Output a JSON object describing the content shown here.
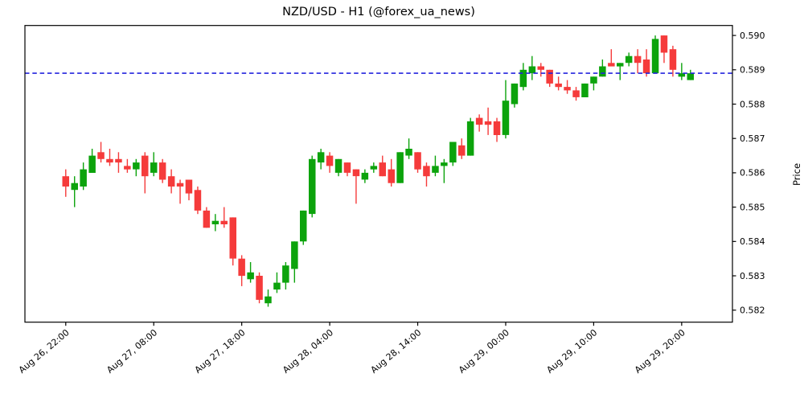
{
  "chart_data": {
    "type": "candlestick",
    "title": "NZD/USD - H1 (@forex_ua_news)",
    "pair": "NZD/USD",
    "timeframe": "H1",
    "source_handle": "@forex_ua_news",
    "right_axis_label": "Price",
    "grid": false,
    "ylim": [
      0.58165,
      0.59029
    ],
    "y_ticks": [
      0.582,
      0.583,
      0.584,
      0.585,
      0.586,
      0.587,
      0.588,
      0.589,
      0.59
    ],
    "xlim_index": [
      -4.64,
      75.77
    ],
    "x_ticks": [
      {
        "index": 0,
        "label": "Aug 26, 22:00"
      },
      {
        "index": 10,
        "label": "Aug 27, 08:00"
      },
      {
        "index": 20,
        "label": "Aug 27, 18:00"
      },
      {
        "index": 30,
        "label": "Aug 28, 04:00"
      },
      {
        "index": 40,
        "label": "Aug 28, 14:00"
      },
      {
        "index": 50,
        "label": "Aug 29, 00:00"
      },
      {
        "index": 60,
        "label": "Aug 29, 10:00"
      },
      {
        "index": 70,
        "label": "Aug 29, 20:00"
      }
    ],
    "current_price_line": {
      "value": 0.5889,
      "color": "#2323dd",
      "style": "dashed"
    },
    "colors": {
      "up": "#0ca30c",
      "down": "#f53b3b",
      "axis": "#000000",
      "background": "#ffffff"
    },
    "candles": [
      {
        "t": "Aug 26 22:00",
        "ohlc": [
          0.5859,
          0.5861,
          0.5853,
          0.5856
        ]
      },
      {
        "t": "Aug 26 23:00",
        "ohlc": [
          0.5855,
          0.5859,
          0.585,
          0.5857
        ]
      },
      {
        "t": "Aug 27 00:00",
        "ohlc": [
          0.5856,
          0.5863,
          0.5855,
          0.5861
        ]
      },
      {
        "t": "Aug 27 01:00",
        "ohlc": [
          0.586,
          0.5867,
          0.586,
          0.5865
        ]
      },
      {
        "t": "Aug 27 02:00",
        "ohlc": [
          0.5866,
          0.5869,
          0.5863,
          0.5864
        ]
      },
      {
        "t": "Aug 27 03:00",
        "ohlc": [
          0.5864,
          0.5867,
          0.5862,
          0.5863
        ]
      },
      {
        "t": "Aug 27 04:00",
        "ohlc": [
          0.5864,
          0.5866,
          0.586,
          0.5863
        ]
      },
      {
        "t": "Aug 27 05:00",
        "ohlc": [
          0.5862,
          0.5864,
          0.586,
          0.5861
        ]
      },
      {
        "t": "Aug 27 06:00",
        "ohlc": [
          0.5861,
          0.5864,
          0.5859,
          0.5863
        ]
      },
      {
        "t": "Aug 27 07:00",
        "ohlc": [
          0.5865,
          0.5866,
          0.5854,
          0.5859
        ]
      },
      {
        "t": "Aug 27 08:00",
        "ohlc": [
          0.586,
          0.5866,
          0.5859,
          0.5863
        ]
      },
      {
        "t": "Aug 27 09:00",
        "ohlc": [
          0.5863,
          0.5864,
          0.5857,
          0.5858
        ]
      },
      {
        "t": "Aug 27 10:00",
        "ohlc": [
          0.5859,
          0.5861,
          0.5854,
          0.5856
        ]
      },
      {
        "t": "Aug 27 11:00",
        "ohlc": [
          0.5857,
          0.5858,
          0.5851,
          0.5856
        ]
      },
      {
        "t": "Aug 27 12:00",
        "ohlc": [
          0.5858,
          0.5858,
          0.5852,
          0.5854
        ]
      },
      {
        "t": "Aug 27 13:00",
        "ohlc": [
          0.5855,
          0.5856,
          0.5848,
          0.5849
        ]
      },
      {
        "t": "Aug 27 14:00",
        "ohlc": [
          0.5849,
          0.585,
          0.5844,
          0.5844
        ]
      },
      {
        "t": "Aug 27 15:00",
        "ohlc": [
          0.5845,
          0.5848,
          0.5843,
          0.5846
        ]
      },
      {
        "t": "Aug 27 16:00",
        "ohlc": [
          0.5846,
          0.585,
          0.5844,
          0.5845
        ]
      },
      {
        "t": "Aug 27 17:00",
        "ohlc": [
          0.5847,
          0.5847,
          0.5833,
          0.5835
        ]
      },
      {
        "t": "Aug 27 18:00",
        "ohlc": [
          0.5835,
          0.5836,
          0.5827,
          0.583
        ]
      },
      {
        "t": "Aug 27 19:00",
        "ohlc": [
          0.5829,
          0.5834,
          0.5828,
          0.5831
        ]
      },
      {
        "t": "Aug 27 20:00",
        "ohlc": [
          0.583,
          0.5831,
          0.5822,
          0.5823
        ]
      },
      {
        "t": "Aug 27 21:00",
        "ohlc": [
          0.5822,
          0.5826,
          0.5821,
          0.5824
        ]
      },
      {
        "t": "Aug 27 22:00",
        "ohlc": [
          0.5826,
          0.5831,
          0.5825,
          0.5828
        ]
      },
      {
        "t": "Aug 27 23:00",
        "ohlc": [
          0.5828,
          0.5834,
          0.5826,
          0.5833
        ]
      },
      {
        "t": "Aug 28 00:00",
        "ohlc": [
          0.5832,
          0.584,
          0.5828,
          0.584
        ]
      },
      {
        "t": "Aug 28 01:00",
        "ohlc": [
          0.584,
          0.5849,
          0.5839,
          0.5849
        ]
      },
      {
        "t": "Aug 28 02:00",
        "ohlc": [
          0.5848,
          0.5865,
          0.5847,
          0.5864
        ]
      },
      {
        "t": "Aug 28 03:00",
        "ohlc": [
          0.5863,
          0.5867,
          0.5861,
          0.5866
        ]
      },
      {
        "t": "Aug 28 04:00",
        "ohlc": [
          0.5865,
          0.5866,
          0.586,
          0.5862
        ]
      },
      {
        "t": "Aug 28 05:00",
        "ohlc": [
          0.586,
          0.5864,
          0.5859,
          0.5864
        ]
      },
      {
        "t": "Aug 28 06:00",
        "ohlc": [
          0.5863,
          0.5863,
          0.5859,
          0.586
        ]
      },
      {
        "t": "Aug 28 07:00",
        "ohlc": [
          0.5861,
          0.5861,
          0.5851,
          0.5859
        ]
      },
      {
        "t": "Aug 28 08:00",
        "ohlc": [
          0.5858,
          0.5861,
          0.5857,
          0.586
        ]
      },
      {
        "t": "Aug 28 09:00",
        "ohlc": [
          0.5861,
          0.5863,
          0.586,
          0.5862
        ]
      },
      {
        "t": "Aug 28 10:00",
        "ohlc": [
          0.5863,
          0.5865,
          0.5859,
          0.5859
        ]
      },
      {
        "t": "Aug 28 11:00",
        "ohlc": [
          0.5861,
          0.5864,
          0.5856,
          0.5857
        ]
      },
      {
        "t": "Aug 28 12:00",
        "ohlc": [
          0.5857,
          0.5866,
          0.5857,
          0.5866
        ]
      },
      {
        "t": "Aug 28 13:00",
        "ohlc": [
          0.5865,
          0.587,
          0.5864,
          0.5867
        ]
      },
      {
        "t": "Aug 28 14:00",
        "ohlc": [
          0.5866,
          0.5866,
          0.586,
          0.5861
        ]
      },
      {
        "t": "Aug 28 15:00",
        "ohlc": [
          0.5862,
          0.5863,
          0.5856,
          0.5859
        ]
      },
      {
        "t": "Aug 28 16:00",
        "ohlc": [
          0.586,
          0.5865,
          0.5859,
          0.5862
        ]
      },
      {
        "t": "Aug 28 17:00",
        "ohlc": [
          0.5862,
          0.5864,
          0.5857,
          0.5863
        ]
      },
      {
        "t": "Aug 28 18:00",
        "ohlc": [
          0.5863,
          0.5869,
          0.5862,
          0.5869
        ]
      },
      {
        "t": "Aug 28 19:00",
        "ohlc": [
          0.5868,
          0.587,
          0.5864,
          0.5865
        ]
      },
      {
        "t": "Aug 28 20:00",
        "ohlc": [
          0.5865,
          0.5876,
          0.5865,
          0.5875
        ]
      },
      {
        "t": "Aug 28 21:00",
        "ohlc": [
          0.5876,
          0.5877,
          0.5872,
          0.5874
        ]
      },
      {
        "t": "Aug 28 22:00",
        "ohlc": [
          0.5875,
          0.5879,
          0.5871,
          0.5874
        ]
      },
      {
        "t": "Aug 28 23:00",
        "ohlc": [
          0.5875,
          0.5876,
          0.5869,
          0.5871
        ]
      },
      {
        "t": "Aug 29 00:00",
        "ohlc": [
          0.5871,
          0.5887,
          0.587,
          0.5881
        ]
      },
      {
        "t": "Aug 29 01:00",
        "ohlc": [
          0.588,
          0.5886,
          0.5879,
          0.5886
        ]
      },
      {
        "t": "Aug 29 02:00",
        "ohlc": [
          0.5885,
          0.5892,
          0.5884,
          0.589
        ]
      },
      {
        "t": "Aug 29 03:00",
        "ohlc": [
          0.5889,
          0.5894,
          0.5887,
          0.5891
        ]
      },
      {
        "t": "Aug 29 04:00",
        "ohlc": [
          0.5891,
          0.5892,
          0.5888,
          0.589
        ]
      },
      {
        "t": "Aug 29 05:00",
        "ohlc": [
          0.589,
          0.589,
          0.5885,
          0.5886
        ]
      },
      {
        "t": "Aug 29 06:00",
        "ohlc": [
          0.5886,
          0.5888,
          0.5884,
          0.5885
        ]
      },
      {
        "t": "Aug 29 07:00",
        "ohlc": [
          0.5885,
          0.5887,
          0.5883,
          0.5884
        ]
      },
      {
        "t": "Aug 29 08:00",
        "ohlc": [
          0.5884,
          0.5885,
          0.5881,
          0.5882
        ]
      },
      {
        "t": "Aug 29 09:00",
        "ohlc": [
          0.5882,
          0.5886,
          0.5882,
          0.5886
        ]
      },
      {
        "t": "Aug 29 10:00",
        "ohlc": [
          0.5886,
          0.5888,
          0.5884,
          0.5888
        ]
      },
      {
        "t": "Aug 29 11:00",
        "ohlc": [
          0.5888,
          0.5893,
          0.5888,
          0.5891
        ]
      },
      {
        "t": "Aug 29 12:00",
        "ohlc": [
          0.5892,
          0.5896,
          0.5891,
          0.5891
        ]
      },
      {
        "t": "Aug 29 13:00",
        "ohlc": [
          0.5891,
          0.5892,
          0.5887,
          0.5892
        ]
      },
      {
        "t": "Aug 29 14:00",
        "ohlc": [
          0.5892,
          0.5895,
          0.5891,
          0.5894
        ]
      },
      {
        "t": "Aug 29 15:00",
        "ohlc": [
          0.5894,
          0.5896,
          0.5889,
          0.5892
        ]
      },
      {
        "t": "Aug 29 16:00",
        "ohlc": [
          0.5893,
          0.5896,
          0.5888,
          0.5889
        ]
      },
      {
        "t": "Aug 29 17:00",
        "ohlc": [
          0.5889,
          0.59,
          0.5889,
          0.5899
        ]
      },
      {
        "t": "Aug 29 18:00",
        "ohlc": [
          0.59,
          0.59,
          0.5892,
          0.5895
        ]
      },
      {
        "t": "Aug 29 19:00",
        "ohlc": [
          0.5896,
          0.5897,
          0.5888,
          0.589
        ]
      },
      {
        "t": "Aug 29 20:00",
        "ohlc": [
          0.5888,
          0.5892,
          0.5887,
          0.5889
        ]
      },
      {
        "t": "Aug 29 21:00",
        "ohlc": [
          0.5887,
          0.589,
          0.5887,
          0.5889
        ]
      }
    ]
  }
}
